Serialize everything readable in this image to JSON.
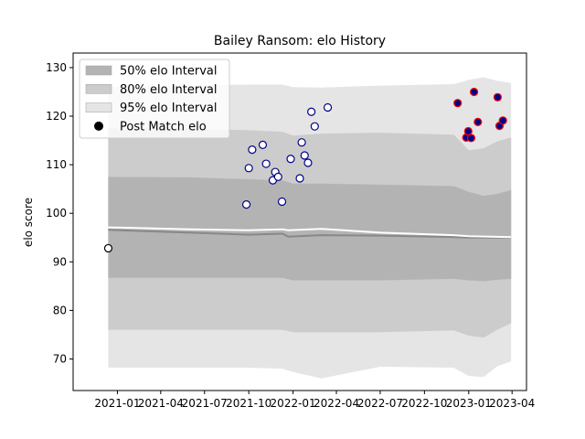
{
  "chart_data": {
    "type": "line",
    "title": "Bailey Ransom: elo History",
    "xlabel": "",
    "ylabel": "elo score",
    "xlim": [
      "2020-10-01",
      "2023-05-01"
    ],
    "ylim": [
      63.5,
      133
    ],
    "y_ticks": [
      70,
      80,
      90,
      100,
      110,
      120,
      130
    ],
    "x_ticks": [
      {
        "date": "2021-01-01",
        "label": "2021-01"
      },
      {
        "date": "2021-04-01",
        "label": "2021-04"
      },
      {
        "date": "2021-07-01",
        "label": "2021-07"
      },
      {
        "date": "2021-10-01",
        "label": "2021-10"
      },
      {
        "date": "2022-01-01",
        "label": "2022-01"
      },
      {
        "date": "2022-04-01",
        "label": "2022-04"
      },
      {
        "date": "2022-07-01",
        "label": "2022-07"
      },
      {
        "date": "2022-10-01",
        "label": "2022-10"
      },
      {
        "date": "2023-01-01",
        "label": "2023-01"
      },
      {
        "date": "2023-04-01",
        "label": "2023-04"
      }
    ],
    "legend": {
      "placement": "upper left",
      "entries": [
        {
          "label": "50% elo Interval",
          "color": "#b3b3b3",
          "kind": "band"
        },
        {
          "label": "80% elo Interval",
          "color": "#cccccc",
          "kind": "band"
        },
        {
          "label": "95% elo Interval",
          "color": "#e5e5e5",
          "kind": "band"
        },
        {
          "label": "Post Match elo",
          "color": "#000000",
          "kind": "marker"
        }
      ]
    },
    "bands": {
      "dates": [
        "2020-12-13",
        "2021-06-01",
        "2021-10-01",
        "2021-12-10",
        "2022-01-01",
        "2022-03-01",
        "2022-07-01",
        "2022-12-01",
        "2023-01-01",
        "2023-02-01",
        "2023-03-01",
        "2023-03-30"
      ],
      "band50_low": [
        86.7,
        86.7,
        86.7,
        86.7,
        86.2,
        86.2,
        86.2,
        86.5,
        86.2,
        86.0,
        86.3,
        86.5
      ],
      "band50_high": [
        107.5,
        107.4,
        107.0,
        106.8,
        106.1,
        106.1,
        105.9,
        105.6,
        104.4,
        103.6,
        104.0,
        104.8
      ],
      "band80_low": [
        76.0,
        76.0,
        76.0,
        76.0,
        75.5,
        75.5,
        75.5,
        75.9,
        74.8,
        74.4,
        76.0,
        77.4
      ],
      "band80_high": [
        117.5,
        117.4,
        117.1,
        116.8,
        116.0,
        116.4,
        116.6,
        116.2,
        113.0,
        113.4,
        114.8,
        115.6
      ],
      "band95_low": [
        68.2,
        68.2,
        68.2,
        68.0,
        67.3,
        66.0,
        68.4,
        68.2,
        66.5,
        66.3,
        68.5,
        69.5
      ],
      "band95_high": [
        126.0,
        126.3,
        126.5,
        126.5,
        126.0,
        125.9,
        126.3,
        126.6,
        127.5,
        128.0,
        127.3,
        126.8
      ]
    },
    "mean_line": {
      "color": "#888888",
      "dates": [
        "2020-12-13",
        "2021-06-01",
        "2021-10-01",
        "2021-12-10",
        "2021-12-22",
        "2022-03-01",
        "2022-07-01",
        "2022-12-01",
        "2023-01-01",
        "2023-03-30"
      ],
      "values": [
        96.6,
        96.0,
        95.6,
        95.8,
        95.2,
        95.5,
        95.4,
        95.1,
        95.0,
        95.0
      ]
    },
    "pre_match_line": {
      "color": "#ffffff",
      "dates": [
        "2020-12-13",
        "2021-06-01",
        "2021-10-01",
        "2021-12-10",
        "2021-12-22",
        "2022-03-01",
        "2022-07-01",
        "2022-12-01",
        "2023-01-01",
        "2023-03-30"
      ],
      "values": [
        97.1,
        96.7,
        96.5,
        96.7,
        96.5,
        96.8,
        96.0,
        95.5,
        95.3,
        95.1
      ]
    },
    "initial_point": {
      "date": "2020-12-13",
      "value": 92.8,
      "face": "#ffffff",
      "edge": "#000000"
    },
    "series": [
      {
        "face": "#ffffff",
        "edge": "#00008b",
        "dates": [
          "2021-09-26",
          "2021-10-01",
          "2021-10-08",
          "2021-10-30",
          "2021-11-06",
          "2021-11-20",
          "2021-11-25",
          "2021-12-01",
          "2021-12-09",
          "2021-12-27",
          "2022-01-15",
          "2022-01-19",
          "2022-01-25",
          "2022-02-01",
          "2022-02-08",
          "2022-02-15",
          "2022-03-14"
        ],
        "values": [
          101.8,
          109.3,
          113.1,
          114.1,
          110.2,
          106.8,
          108.5,
          107.5,
          102.4,
          111.2,
          107.2,
          114.6,
          111.9,
          110.4,
          120.9,
          117.9,
          121.8
        ]
      },
      {
        "face": "#00008b",
        "edge": "#ff0000",
        "dates": [
          "2022-12-09",
          "2022-12-27",
          "2022-12-31",
          "2023-01-06",
          "2023-01-12",
          "2023-01-20",
          "2023-03-02",
          "2023-03-06",
          "2023-03-13"
        ],
        "values": [
          122.7,
          115.6,
          116.9,
          115.5,
          125.0,
          118.8,
          123.9,
          118.0,
          119.1
        ]
      }
    ]
  }
}
